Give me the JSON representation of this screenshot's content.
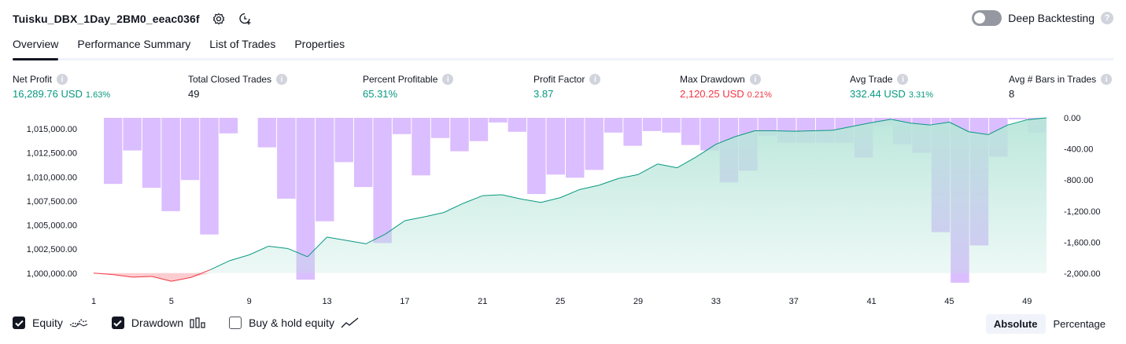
{
  "header": {
    "title": "Tuisku_DBX_1Day_2BM0_eeac036f",
    "settings_icon": "gear-icon",
    "add_icon": "add-alert-icon"
  },
  "deep_backtesting": {
    "label": "Deep Backtesting",
    "enabled": false,
    "help": "?"
  },
  "tabs": [
    {
      "label": "Overview",
      "active": true
    },
    {
      "label": "Performance Summary",
      "active": false
    },
    {
      "label": "List of Trades",
      "active": false
    },
    {
      "label": "Properties",
      "active": false
    }
  ],
  "stats": [
    {
      "label": "Net Profit",
      "value": "16,289.76 USD",
      "pct": "1.63%",
      "color": "#089981"
    },
    {
      "label": "Total Closed Trades",
      "value": "49",
      "pct": "",
      "color": "#131722"
    },
    {
      "label": "Percent Profitable",
      "value": "65.31%",
      "pct": "",
      "color": "#089981"
    },
    {
      "label": "Profit Factor",
      "value": "3.87",
      "pct": "",
      "color": "#089981"
    },
    {
      "label": "Max Drawdown",
      "value": "2,120.25 USD",
      "pct": "0.21%",
      "color": "#f23645"
    },
    {
      "label": "Avg Trade",
      "value": "332.44 USD",
      "pct": "3.31%",
      "color": "#089981"
    },
    {
      "label": "Avg # Bars in Trades",
      "value": "8",
      "pct": "",
      "color": "#131722"
    }
  ],
  "chart_data": {
    "type": "area",
    "x_ticks": [
      "1",
      "5",
      "9",
      "13",
      "17",
      "21",
      "25",
      "29",
      "33",
      "37",
      "41",
      "45",
      "49"
    ],
    "left_axis": {
      "ticks": [
        "1,015,000.00",
        "1,012,500.00",
        "1,010,000.00",
        "1,007,500.00",
        "1,005,000.00",
        "1,002,500.00",
        "1,000,000.00"
      ],
      "range": [
        999000,
        1016150
      ]
    },
    "right_axis": {
      "ticks": [
        "0.00",
        "-400.00",
        "-800.00",
        "-1,200.00",
        "-1,600.00",
        "-2,000.00"
      ],
      "range": [
        -2120.25,
        0
      ]
    },
    "series": [
      {
        "name": "Equity",
        "type": "area",
        "color_up": "#089981",
        "color_down": "#f23645",
        "fill": "#c8ece3",
        "x": [
          1,
          2,
          3,
          4,
          5,
          6,
          7,
          8,
          9,
          10,
          11,
          12,
          13,
          14,
          15,
          16,
          17,
          18,
          19,
          20,
          21,
          22,
          23,
          24,
          25,
          26,
          27,
          28,
          29,
          30,
          31,
          32,
          33,
          34,
          35,
          36,
          37,
          38,
          39,
          40,
          41,
          42,
          43,
          44,
          45,
          46,
          47,
          48,
          49,
          50
        ],
        "values": [
          1000000,
          999850,
          999580,
          999650,
          999150,
          999550,
          1000350,
          1001300,
          1001900,
          1002800,
          1002550,
          1001700,
          1003750,
          1003400,
          1003050,
          1004050,
          1005450,
          1005850,
          1006300,
          1007250,
          1008050,
          1008150,
          1007700,
          1007350,
          1007850,
          1008700,
          1009150,
          1009850,
          1010250,
          1011350,
          1010950,
          1012100,
          1013400,
          1014200,
          1014800,
          1014800,
          1014750,
          1014800,
          1014850,
          1015250,
          1015650,
          1016000,
          1015600,
          1015400,
          1015700,
          1014700,
          1014400,
          1015400,
          1015950,
          1016150
        ]
      },
      {
        "name": "Drawdown",
        "type": "bar",
        "color": "#c79bff",
        "x": [
          1,
          2,
          3,
          4,
          5,
          6,
          7,
          8,
          9,
          10,
          11,
          12,
          13,
          14,
          15,
          16,
          17,
          18,
          19,
          20,
          21,
          22,
          23,
          24,
          25,
          26,
          27,
          28,
          29,
          30,
          31,
          32,
          33,
          34,
          35,
          36,
          37,
          38,
          39,
          40,
          41,
          42,
          43,
          44,
          45,
          46,
          47,
          48,
          49,
          50
        ],
        "values": [
          0,
          -850,
          -420,
          -900,
          -1200,
          -800,
          -1500,
          -200,
          0,
          -380,
          -1040,
          -2080,
          -1330,
          -570,
          -890,
          -1610,
          -210,
          -740,
          -260,
          -430,
          -300,
          -60,
          -180,
          -980,
          -730,
          -770,
          -670,
          -190,
          -360,
          -170,
          -190,
          -350,
          -420,
          -830,
          -680,
          -230,
          -320,
          -320,
          -320,
          -320,
          -510,
          -100,
          -340,
          -450,
          -1470,
          -2120,
          -1640,
          -500,
          -20,
          -190
        ]
      }
    ],
    "legend": {
      "position": "bottom-left"
    }
  },
  "legend": [
    {
      "label": "Equity",
      "checked": true,
      "icon": "equity-line-icon"
    },
    {
      "label": "Drawdown",
      "checked": true,
      "icon": "drawdown-bars-icon"
    },
    {
      "label": "Buy & hold equity",
      "checked": false,
      "icon": "buy-hold-line-icon"
    }
  ],
  "modes": [
    {
      "label": "Absolute",
      "active": true
    },
    {
      "label": "Percentage",
      "active": false
    }
  ]
}
